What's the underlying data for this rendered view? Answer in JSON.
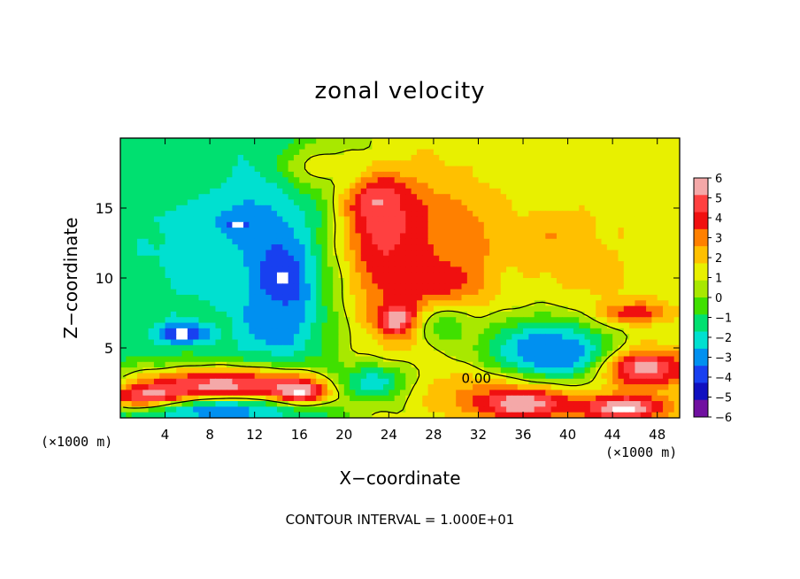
{
  "chart_data": {
    "type": "heatmap",
    "title": "zonal velocity",
    "xlabel": "X−coordinate",
    "ylabel": "Z−coordinate",
    "x_units": "(×1000 m)",
    "z_units": "(×1000 m)",
    "xlim": [
      0,
      50
    ],
    "ylim": [
      0,
      20
    ],
    "x_ticks": [
      4,
      8,
      12,
      16,
      20,
      24,
      28,
      32,
      36,
      40,
      44,
      48
    ],
    "y_ticks": [
      5,
      10,
      15
    ],
    "colorbar": {
      "levels": [
        6,
        5,
        4,
        3,
        2,
        1,
        0,
        -1,
        -2,
        -3,
        -4,
        -5,
        -6
      ],
      "labels": [
        "6",
        "5",
        "4",
        "3",
        "2",
        "1",
        "0",
        "−1",
        "−2",
        "−3",
        "−4",
        "−5",
        "−6"
      ],
      "colors": [
        "#f4a8a8",
        "#ff4040",
        "#f01010",
        "#ff8000",
        "#ffc000",
        "#e8f000",
        "#a8e800",
        "#40e000",
        "#00e070",
        "#00e0d0",
        "#0090f0",
        "#1840f0",
        "#1010c0",
        "#7010a0"
      ]
    },
    "contour_label": "0.00",
    "contour_label_pos": [
      30.5,
      2.5
    ],
    "footer": "CONTOUR INTERVAL = 1.000E+01",
    "features": [
      {
        "cx": 10,
        "cz": 14.5,
        "rx": 7,
        "rz": 4.5,
        "v": -4.5
      },
      {
        "cx": 5,
        "cz": 17.5,
        "rx": 6,
        "rz": 3,
        "v": -2.2
      },
      {
        "cx": 14.5,
        "cz": 9.5,
        "rx": 3,
        "rz": 4,
        "v": -6.5
      },
      {
        "cx": 5.5,
        "cz": 6,
        "rx": 2.5,
        "rz": 0.8,
        "v": -6.5
      },
      {
        "cx": 10.5,
        "cz": 13.8,
        "rx": 1.2,
        "rz": 0.4,
        "v": -6.5
      },
      {
        "cx": 13.5,
        "cz": 6.8,
        "rx": 3.5,
        "rz": 2.5,
        "v": -4.5
      },
      {
        "cx": 7,
        "cz": 11,
        "rx": 3,
        "rz": 3,
        "v": -3.5
      },
      {
        "cx": 25,
        "cz": 13,
        "rx": 4,
        "rz": 2.5,
        "v": 6.5
      },
      {
        "cx": 28,
        "cz": 10,
        "rx": 3.5,
        "rz": 2,
        "v": 6
      },
      {
        "cx": 23,
        "cz": 15.5,
        "rx": 3,
        "rz": 2,
        "v": 6
      },
      {
        "cx": 26,
        "cz": 11,
        "rx": 6,
        "rz": 6,
        "v": 4
      },
      {
        "cx": 25,
        "cz": 7,
        "rx": 2,
        "rz": 1.2,
        "v": 6.5
      },
      {
        "cx": 29,
        "cz": 6.5,
        "rx": 3,
        "rz": 2,
        "v": -1.5
      },
      {
        "cx": 39,
        "cz": 13,
        "rx": 3,
        "rz": 2,
        "v": 3
      },
      {
        "cx": 42,
        "cz": 10,
        "rx": 6,
        "rz": 5,
        "v": 1.2
      },
      {
        "cx": 38,
        "cz": 17,
        "rx": 7,
        "rz": 3,
        "v": 0.8
      },
      {
        "cx": 39,
        "cz": 4.5,
        "rx": 4.5,
        "rz": 1.5,
        "v": -6.5
      },
      {
        "cx": 38,
        "cz": 5,
        "rx": 6,
        "rz": 2.5,
        "v": -4.5
      },
      {
        "cx": 47,
        "cz": 3.5,
        "rx": 4,
        "rz": 1.5,
        "v": 5.5
      },
      {
        "cx": 46,
        "cz": 7.5,
        "rx": 3,
        "rz": 0.8,
        "v": 4
      },
      {
        "cx": 9,
        "cz": 2.3,
        "rx": 10,
        "rz": 1.5,
        "v": 5.5
      },
      {
        "cx": 3,
        "cz": 1.4,
        "rx": 4,
        "rz": 0.9,
        "v": 7
      },
      {
        "cx": 16,
        "cz": 1.8,
        "rx": 3,
        "rz": 1,
        "v": 7
      },
      {
        "cx": 23,
        "cz": 2.5,
        "rx": 4,
        "rz": 1.5,
        "v": -4
      },
      {
        "cx": 31,
        "cz": 2,
        "rx": 6,
        "rz": 1.5,
        "v": 1.5
      },
      {
        "cx": 36,
        "cz": 1,
        "rx": 5,
        "rz": 1.2,
        "v": 6
      },
      {
        "cx": 9,
        "cz": 0.5,
        "rx": 8,
        "rz": 1,
        "v": -4.5
      },
      {
        "cx": 45,
        "cz": 0.7,
        "rx": 4,
        "rz": 1,
        "v": 6.5
      },
      {
        "cx": 30,
        "cz": 13,
        "rx": 4,
        "rz": 3.5,
        "v": 2.5
      },
      {
        "cx": 18,
        "cz": 18,
        "rx": 4,
        "rz": 2,
        "v": 0.5
      }
    ],
    "background_profile": {
      "x0": 20,
      "left_value": -2.5,
      "right_value": 0.5
    }
  }
}
